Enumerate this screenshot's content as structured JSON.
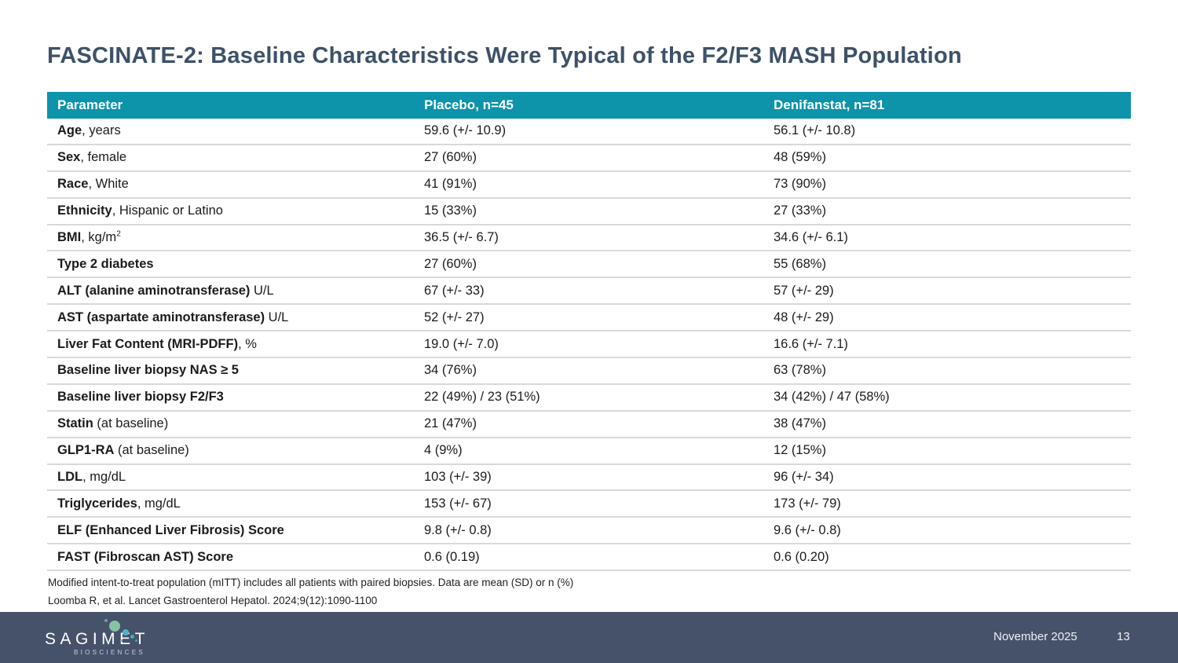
{
  "title": "FASCINATE-2: Baseline Characteristics Were Typical of the F2/F3 MASH Population",
  "colors": {
    "header_teal": "#0d93aa",
    "title_navy": "#3d5169",
    "footer_slate": "#46526a",
    "logo_green": "#85c3a3",
    "logo_teal": "#4ab5c6"
  },
  "table": {
    "headers": [
      "Parameter",
      "Placebo, n=45",
      "Denifanstat, n=81"
    ],
    "rows": [
      {
        "bold": "Age",
        "rest": ", years",
        "placebo": "59.6 (+/- 10.9)",
        "denifanstat": "56.1 (+/- 10.8)"
      },
      {
        "bold": "Sex",
        "rest": ", female",
        "placebo": "27 (60%)",
        "denifanstat": "48 (59%)"
      },
      {
        "bold": "Race",
        "rest": ", White",
        "placebo": "41 (91%)",
        "denifanstat": "73 (90%)"
      },
      {
        "bold": "Ethnicity",
        "rest": ", Hispanic or Latino",
        "placebo": "15 (33%)",
        "denifanstat": "27 (33%)"
      },
      {
        "bold": "BMI",
        "rest": ", kg/m",
        "sup": "2",
        "placebo": "36.5 (+/- 6.7)",
        "denifanstat": "34.6 (+/- 6.1)"
      },
      {
        "bold": "Type 2 diabetes",
        "rest": "",
        "placebo": "27 (60%)",
        "denifanstat": "55 (68%)"
      },
      {
        "bold": "ALT (alanine aminotransferase)",
        "rest": " U/L",
        "placebo": "67 (+/- 33)",
        "denifanstat": "57 (+/- 29)"
      },
      {
        "bold": "AST (aspartate aminotransferase)",
        "rest": " U/L",
        "placebo": "52 (+/- 27)",
        "denifanstat": "48 (+/- 29)"
      },
      {
        "bold": "Liver Fat Content (MRI-PDFF)",
        "rest": ", %",
        "placebo": "19.0 (+/- 7.0)",
        "denifanstat": "16.6 (+/- 7.1)"
      },
      {
        "bold": "Baseline liver biopsy NAS ≥ 5",
        "rest": "",
        "placebo": "34 (76%)",
        "denifanstat": "63 (78%)"
      },
      {
        "bold": "Baseline liver biopsy F2/F3",
        "rest": "",
        "placebo": "22 (49%) / 23 (51%)",
        "denifanstat": "34 (42%) / 47 (58%)"
      },
      {
        "bold": "Statin",
        "rest": " (at baseline)",
        "placebo": "21 (47%)",
        "denifanstat": "38 (47%)"
      },
      {
        "bold": "GLP1-RA",
        "rest": " (at baseline)",
        "placebo": "4 (9%)",
        "denifanstat": "12 (15%)"
      },
      {
        "bold": "LDL",
        "rest": ", mg/dL",
        "placebo": "103 (+/- 39)",
        "denifanstat": "96 (+/- 34)"
      },
      {
        "bold": "Triglycerides",
        "rest": ", mg/dL",
        "placebo": "153 (+/- 67)",
        "denifanstat": "173 (+/- 79)"
      },
      {
        "bold": "ELF (Enhanced Liver Fibrosis) Score",
        "rest": "",
        "placebo": "9.8 (+/- 0.8)",
        "denifanstat": "9.6 (+/- 0.8)"
      },
      {
        "bold": "FAST (Fibroscan AST) Score",
        "rest": "",
        "placebo": "0.6 (0.19)",
        "denifanstat": "0.6 (0.20)"
      }
    ]
  },
  "footnotes": [
    "Modified intent-to-treat population (mITT) includes all patients with paired biopsies. Data are mean (SD) or n (%)",
    "Loomba R, et al. Lancet Gastroenterol Hepatol. 2024;9(12):1090-1100"
  ],
  "footer": {
    "logo_title": "SAGIMET",
    "logo_subtitle": "BIOSCIENCES",
    "date": "November 2025",
    "page": "13"
  }
}
